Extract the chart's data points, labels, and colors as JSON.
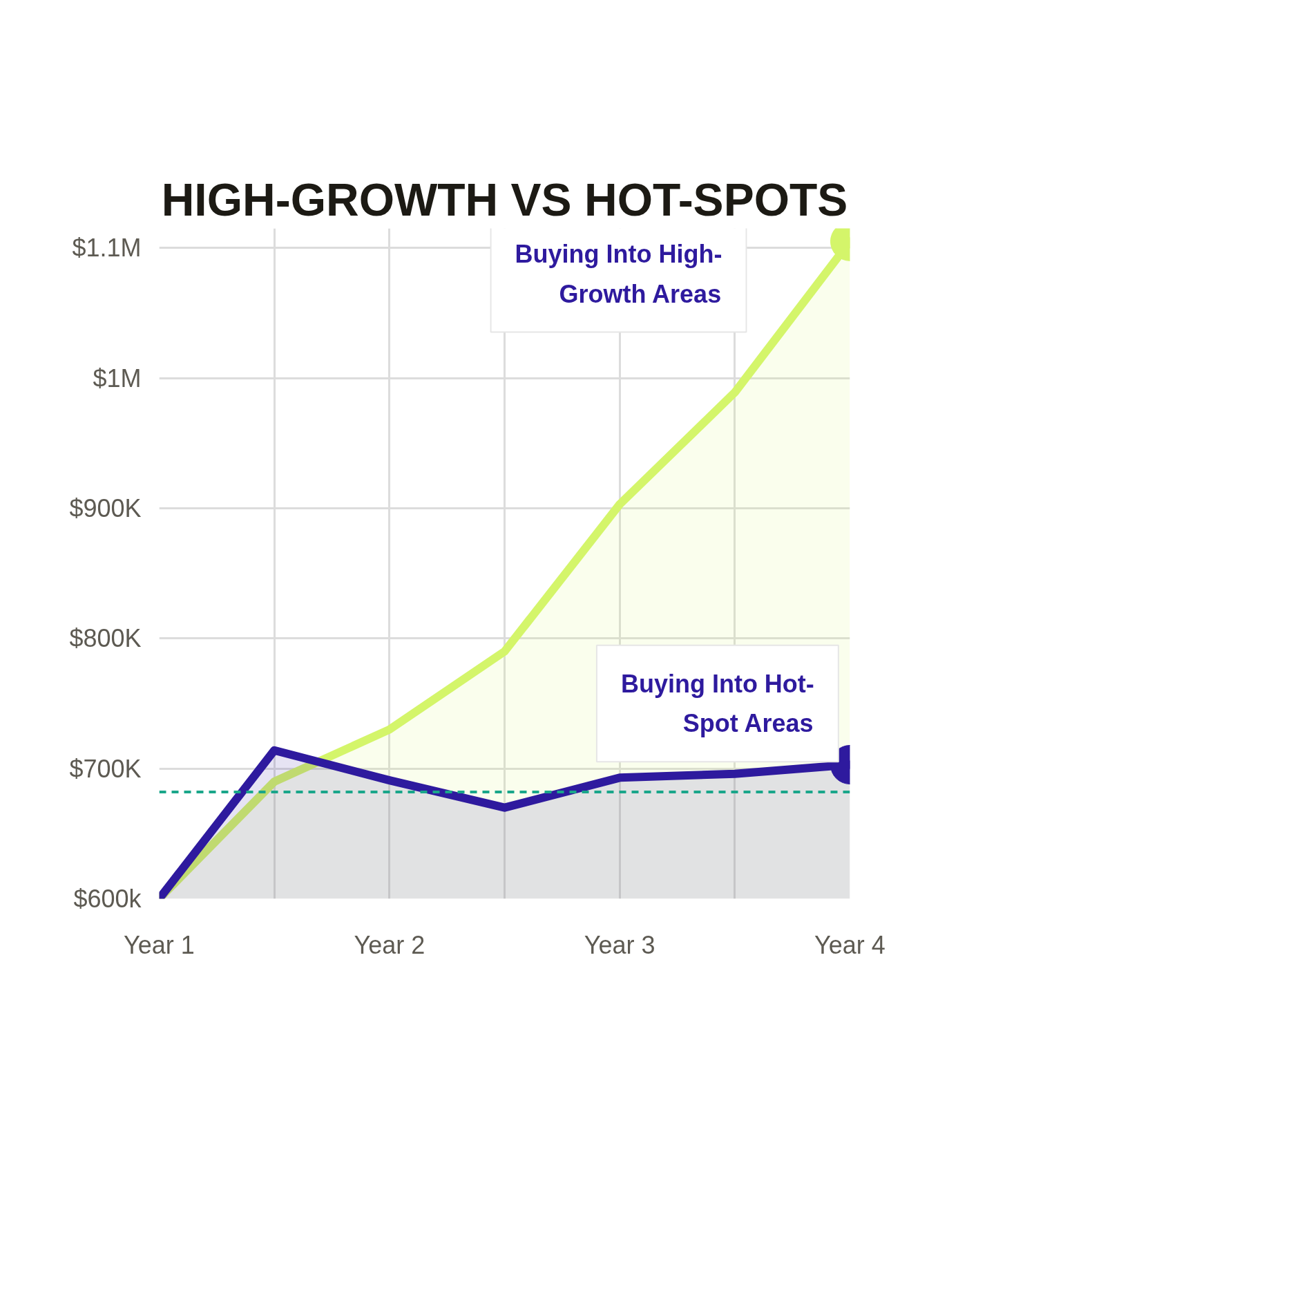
{
  "chart_data": {
    "type": "area",
    "title": "HIGH-GROWTH VS HOT-SPOTS",
    "categories": [
      "Year 1",
      null,
      "Year 2",
      null,
      "Year 3",
      null,
      "Year 4"
    ],
    "ylim": [
      600000,
      1115000
    ],
    "yticks": [
      {
        "value": 600000,
        "label": "$600k"
      },
      {
        "value": 700000,
        "label": "$700K"
      },
      {
        "value": 800000,
        "label": "$800K"
      },
      {
        "value": 900000,
        "label": "$900K"
      },
      {
        "value": 1000000,
        "label": "$1M"
      },
      {
        "value": 1100000,
        "label": "$1.1M"
      }
    ],
    "grid": true,
    "marker": "none",
    "line_style": "solid",
    "ref_lines": [
      {
        "axis": "y",
        "value": 682000,
        "label": null,
        "color": "#1aa68a",
        "line_style": "dashed"
      }
    ],
    "series": [
      {
        "name": "Buying Into High-Growth Areas",
        "color": "#d4f56a",
        "values": [
          600000,
          690000,
          730000,
          790000,
          903000,
          989000,
          1105000
        ]
      },
      {
        "name": "Buying Into Hot-Spot Areas",
        "color": "#2e1a9e",
        "values": [
          600000,
          714000,
          691000,
          670000,
          693000,
          696000,
          703000
        ]
      }
    ]
  }
}
